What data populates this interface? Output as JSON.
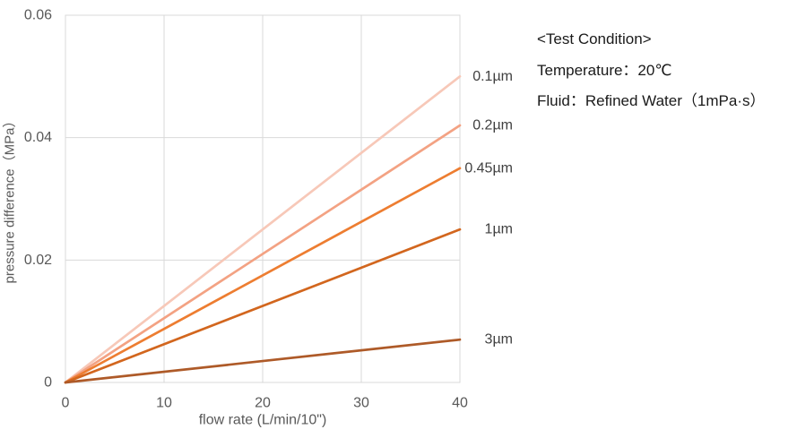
{
  "chart_data": {
    "type": "line",
    "title": "",
    "xlabel": "flow rate (L/min/10\")",
    "ylabel": "pressure difference（MPa）",
    "xlim": [
      0,
      40
    ],
    "ylim": [
      0,
      0.06
    ],
    "x_ticks": [
      0,
      10,
      20,
      30,
      40
    ],
    "x_tick_labels": [
      "0",
      "10",
      "20",
      "30",
      "40"
    ],
    "y_ticks": [
      0,
      0.02,
      0.04,
      0.06
    ],
    "y_tick_labels": [
      "0",
      "0.02",
      "0.04",
      "0.06"
    ],
    "grid": true,
    "legend_position": "labels-at-line-ends",
    "series": [
      {
        "name": "0.1µm",
        "x": [
          0,
          40
        ],
        "y": [
          0,
          0.05
        ],
        "color": "#F7C8B8"
      },
      {
        "name": "0.2µm",
        "x": [
          0,
          40
        ],
        "y": [
          0,
          0.042
        ],
        "color": "#F3A283"
      },
      {
        "name": "0.45µm",
        "x": [
          0,
          40
        ],
        "y": [
          0,
          0.035
        ],
        "color": "#ED7D31"
      },
      {
        "name": "1µm",
        "x": [
          0,
          40
        ],
        "y": [
          0,
          0.025
        ],
        "color": "#D2661E"
      },
      {
        "name": "3µm",
        "x": [
          0,
          40
        ],
        "y": [
          0,
          0.007
        ],
        "color": "#AE5A28"
      }
    ]
  },
  "conditions": {
    "title": "<Test Condition>",
    "temperature": "Temperature：20℃",
    "fluid": "Fluid：Refined Water（1mPa·s）"
  },
  "colors": {
    "grid": "#D9D9D9",
    "tick_text": "#595959",
    "axis_title_text": "#595959",
    "series_label_text": "#404040",
    "condition_text": "#1A1A1A",
    "background": "#FFFFFF"
  }
}
